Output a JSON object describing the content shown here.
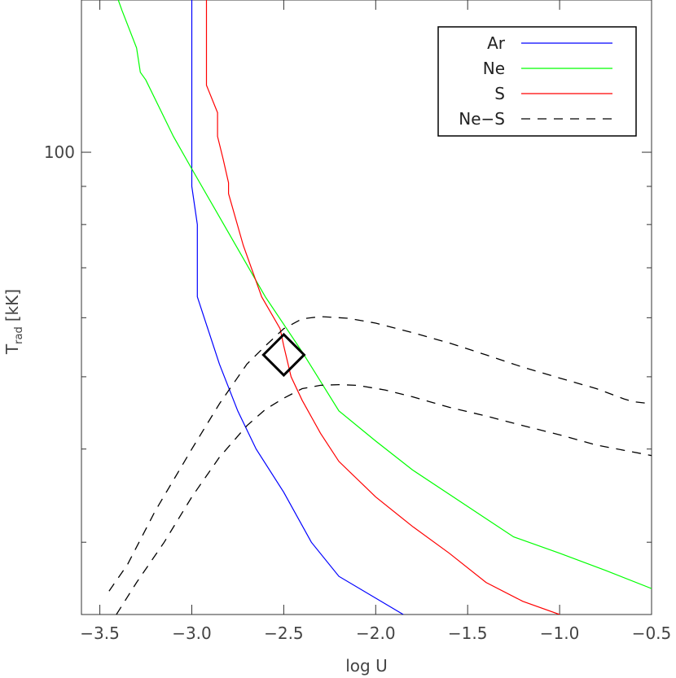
{
  "chart_data": {
    "type": "line",
    "xlabel": "log U",
    "ylabel_main": "T",
    "ylabel_sub": "rad",
    "ylabel_unit": "[kK]",
    "xlim": [
      -3.6,
      -0.5
    ],
    "ylim": [
      24,
      160
    ],
    "yscale": "log",
    "x_ticks": [
      -3.5,
      -3.0,
      -2.5,
      -2.0,
      -1.5,
      -1.0,
      -0.5
    ],
    "x_tick_labels": [
      "−3.5",
      "−3.0",
      "−2.5",
      "−2.0",
      "−1.5",
      "−1.0",
      "−0.5"
    ],
    "y_major_ticks": [
      100
    ],
    "y_major_tick_labels": [
      "100"
    ],
    "y_minor_ticks": [
      30,
      40,
      50,
      60,
      70,
      80,
      90
    ],
    "legend_position": "top-right",
    "series": [
      {
        "name": "Ar",
        "color": "#0000ff",
        "dash": "solid",
        "points": [
          [
            -3.0,
            160
          ],
          [
            -3.0,
            90
          ],
          [
            -2.97,
            80
          ],
          [
            -2.97,
            64
          ],
          [
            -2.85,
            52
          ],
          [
            -2.75,
            45
          ],
          [
            -2.65,
            40
          ],
          [
            -2.5,
            35
          ],
          [
            -2.35,
            30
          ],
          [
            -2.2,
            27
          ],
          [
            -1.85,
            24
          ]
        ]
      },
      {
        "name": "Ne",
        "color": "#00ff00",
        "dash": "solid",
        "points": [
          [
            -3.4,
            160
          ],
          [
            -3.38,
            155
          ],
          [
            -3.3,
            138
          ],
          [
            -3.28,
            128
          ],
          [
            -3.25,
            125
          ],
          [
            -3.1,
            105
          ],
          [
            -3.0,
            95
          ],
          [
            -2.8,
            78
          ],
          [
            -2.6,
            64
          ],
          [
            -2.4,
            54
          ],
          [
            -2.2,
            45
          ],
          [
            -2.0,
            41
          ],
          [
            -1.8,
            37.5
          ],
          [
            -1.5,
            33.5
          ],
          [
            -1.25,
            30.5
          ],
          [
            -1.0,
            29
          ],
          [
            -0.75,
            27.5
          ],
          [
            -0.5,
            26
          ]
        ]
      },
      {
        "name": "S",
        "color": "#ff0000",
        "dash": "solid",
        "points": [
          [
            -2.92,
            160
          ],
          [
            -2.92,
            123
          ],
          [
            -2.86,
            113
          ],
          [
            -2.86,
            105
          ],
          [
            -2.83,
            98
          ],
          [
            -2.8,
            91
          ],
          [
            -2.8,
            88
          ],
          [
            -2.72,
            75
          ],
          [
            -2.62,
            64
          ],
          [
            -2.52,
            58
          ],
          [
            -2.5,
            55
          ],
          [
            -2.46,
            50
          ],
          [
            -2.4,
            46.5
          ],
          [
            -2.3,
            42
          ],
          [
            -2.2,
            38.5
          ],
          [
            -2.0,
            34.5
          ],
          [
            -1.8,
            31.5
          ],
          [
            -1.6,
            29
          ],
          [
            -1.4,
            26.5
          ],
          [
            -1.2,
            25
          ],
          [
            -1.0,
            24
          ]
        ]
      },
      {
        "name": "Ne−S",
        "color": "#000000",
        "dash": "dashed",
        "points": [
          [
            -3.45,
            25.8
          ],
          [
            -3.35,
            28
          ],
          [
            -3.2,
            33
          ],
          [
            -3.0,
            40
          ],
          [
            -2.85,
            46
          ],
          [
            -2.7,
            52
          ],
          [
            -2.6,
            55
          ],
          [
            -2.5,
            58
          ],
          [
            -2.4,
            59.8
          ],
          [
            -2.3,
            60.2
          ],
          [
            -2.15,
            59.9
          ],
          [
            -2.0,
            59
          ],
          [
            -1.8,
            57.3
          ],
          [
            -1.6,
            55.5
          ],
          [
            -1.4,
            53.5
          ],
          [
            -1.2,
            51.5
          ],
          [
            -1.0,
            49.8
          ],
          [
            -0.8,
            48.2
          ],
          [
            -0.65,
            46.7
          ],
          [
            -0.6,
            46.3
          ],
          [
            -0.5,
            46
          ]
        ]
      },
      {
        "name": "",
        "color": "#000000",
        "dash": "dashed",
        "points": [
          [
            -3.41,
            24
          ],
          [
            -3.3,
            26.5
          ],
          [
            -3.15,
            30
          ],
          [
            -3.0,
            34.5
          ],
          [
            -2.85,
            39
          ],
          [
            -2.7,
            43
          ],
          [
            -2.6,
            45.2
          ],
          [
            -2.5,
            46.8
          ],
          [
            -2.4,
            48.2
          ],
          [
            -2.3,
            48.7
          ],
          [
            -2.2,
            48.8
          ],
          [
            -2.1,
            48.7
          ],
          [
            -1.95,
            48
          ],
          [
            -1.8,
            47
          ],
          [
            -1.6,
            45.5
          ],
          [
            -1.4,
            44.3
          ],
          [
            -1.2,
            43
          ],
          [
            -1.0,
            41.8
          ],
          [
            -0.8,
            40.5
          ],
          [
            -0.5,
            39.2
          ]
        ]
      }
    ],
    "marker": {
      "shape": "diamond",
      "x": -2.5,
      "y": 53.5,
      "color": "#000000"
    }
  }
}
